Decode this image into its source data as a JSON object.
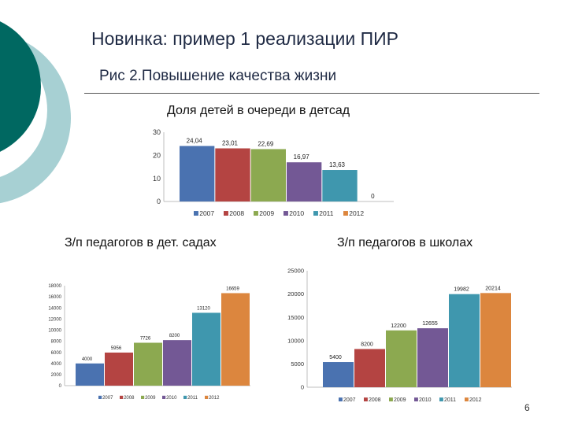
{
  "slide": {
    "title": "Новинка: пример 1 реализации ПИР",
    "subtitle": "Рис 2.Повышение качества жизни",
    "page_number": "6"
  },
  "colors": {
    "2007": "#4a72b0",
    "2008": "#b44442",
    "2009": "#8ca950",
    "2010": "#735895",
    "2011": "#3f97ae",
    "2012": "#dc863e",
    "deco_dark": "#006861",
    "deco_light": "#a7d0d3"
  },
  "chart_data": [
    {
      "type": "bar",
      "title": "Доля детей в очереди в детсад",
      "categories": [
        "2007",
        "2008",
        "2009",
        "2010",
        "2011",
        "2012"
      ],
      "values": [
        24.04,
        23.01,
        22.69,
        16.97,
        13.63,
        0
      ],
      "value_labels": [
        "24,04",
        "23,01",
        "22,69",
        "16,97",
        "13,63",
        "0"
      ],
      "yticks": [
        0,
        10,
        20,
        30
      ],
      "ylim": [
        0,
        30
      ],
      "legend": "bottom",
      "grid": false
    },
    {
      "type": "bar",
      "title": "З/п педагогов в дет. садах",
      "categories": [
        "2007",
        "2008",
        "2009",
        "2010",
        "2011",
        "2012"
      ],
      "values": [
        4000,
        5956,
        7726,
        8200,
        13120,
        16659
      ],
      "value_labels": [
        "4000",
        "5956",
        "7726",
        "8200",
        "13120",
        "16659"
      ],
      "yticks": [
        0,
        2000,
        4000,
        6000,
        8000,
        10000,
        12000,
        14000,
        16000,
        18000
      ],
      "ylim": [
        0,
        18000
      ],
      "legend": "bottom",
      "grid": false
    },
    {
      "type": "bar",
      "title": "З/п педагогов в школах",
      "categories": [
        "2007",
        "2008",
        "2009",
        "2010",
        "2011",
        "2012"
      ],
      "values": [
        5400,
        8200,
        12200,
        12655,
        19982,
        20214
      ],
      "value_labels": [
        "5400",
        "8200",
        "12200",
        "12655",
        "19982",
        "20214"
      ],
      "yticks": [
        0,
        5000,
        10000,
        15000,
        20000,
        25000
      ],
      "ylim": [
        0,
        25000
      ],
      "legend": "bottom",
      "grid": false
    }
  ]
}
